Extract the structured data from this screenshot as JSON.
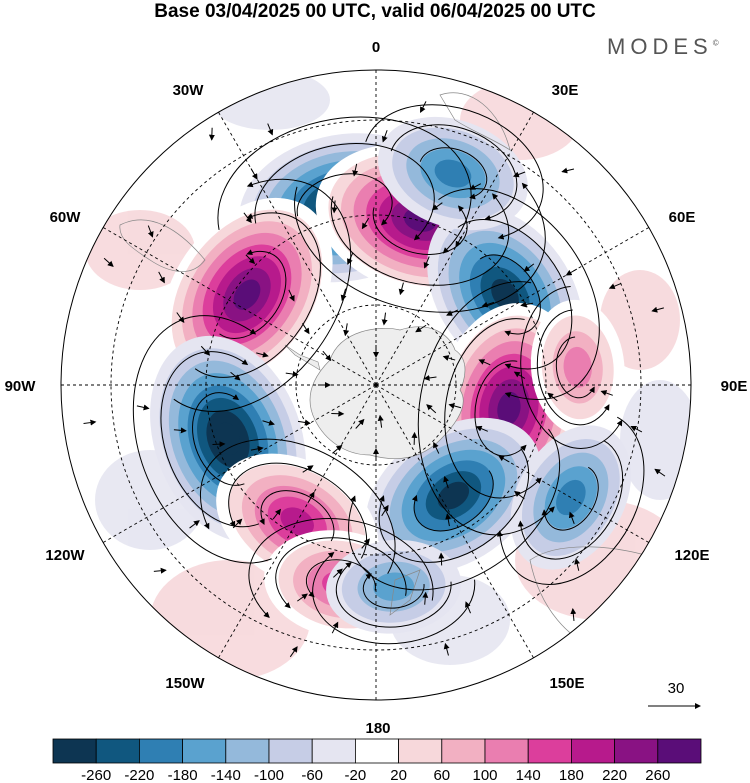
{
  "title": "Base 03/04/2025 00 UTC, valid 06/04/2025 00 UTC",
  "brand": "MODES",
  "brand_mark": "©",
  "longitude_labels": {
    "n0": "0",
    "n30e": "30E",
    "n60e": "60E",
    "n90e": "90E",
    "n120e": "120E",
    "n150e": "150E",
    "n180": "180",
    "n150w": "150W",
    "n120w": "120W",
    "n90w": "90W",
    "n60w": "60W",
    "n30w": "30W"
  },
  "reference_vector_label": "30",
  "colorbar": {
    "colors": [
      "#0d3552",
      "#10577f",
      "#2f7fb3",
      "#5aa2cf",
      "#94b9db",
      "#c6cde6",
      "#e5e5f1",
      "#ffffff",
      "#f7d8db",
      "#f2b0c2",
      "#ea7eb0",
      "#dc3e9c",
      "#b71a8c",
      "#891283",
      "#5a0d78"
    ],
    "labels": [
      "-260",
      "-220",
      "-180",
      "-140",
      "-100",
      "-60",
      "-20",
      "20",
      "60",
      "100",
      "140",
      "180",
      "220",
      "260"
    ]
  },
  "map_data": {
    "projection": "south polar stereographic",
    "field_units_note": "",
    "anomaly_centers": [
      {
        "lon": -10,
        "lat": -50,
        "value": -260
      },
      {
        "lon": 15,
        "lat": -52,
        "value": 260
      },
      {
        "lon": -55,
        "lat": -55,
        "value": 260
      },
      {
        "lon": 55,
        "lat": -55,
        "value": -220
      },
      {
        "lon": -110,
        "lat": -55,
        "value": -260
      },
      {
        "lon": 100,
        "lat": -60,
        "value": 260
      },
      {
        "lon": 145,
        "lat": -60,
        "value": -220
      },
      {
        "lon": -150,
        "lat": -55,
        "value": 180
      },
      {
        "lon": 20,
        "lat": -40,
        "value": -140
      },
      {
        "lon": -170,
        "lat": -45,
        "value": 140
      },
      {
        "lon": 175,
        "lat": -45,
        "value": -100
      },
      {
        "lon": 85,
        "lat": -45,
        "value": 100
      },
      {
        "lon": 120,
        "lat": -40,
        "value": -140
      }
    ]
  }
}
